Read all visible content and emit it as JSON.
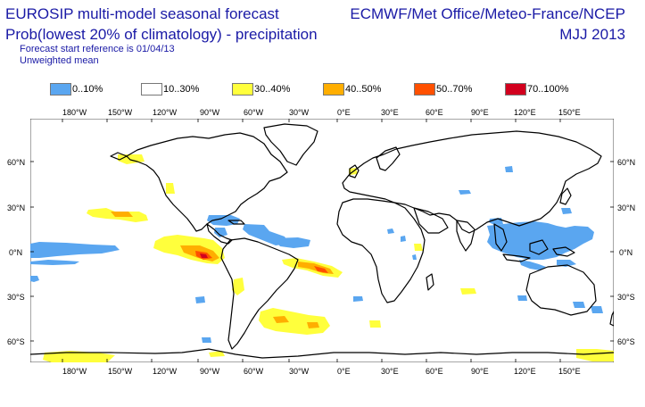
{
  "header": {
    "title": "EUROSIP multi-model seasonal forecast",
    "subtitle": "Prob(lowest 20% of climatology) - precipitation",
    "forecast_start": "Forecast start reference is 01/04/13",
    "mean_type": "Unweighted mean",
    "source": "ECMWF/Met Office/Meteo-France/NCEP",
    "period": "MJJ 2013"
  },
  "legend": [
    {
      "label": "0..10%",
      "color": "#5aa6f0"
    },
    {
      "label": "10..30%",
      "color": "#ffffff"
    },
    {
      "label": "30..40%",
      "color": "#ffff3c"
    },
    {
      "label": "40..50%",
      "color": "#ffae00"
    },
    {
      "label": "50..70%",
      "color": "#ff5000"
    },
    {
      "label": "70..100%",
      "color": "#d2001e"
    }
  ],
  "axes": {
    "lon_ticks": [
      "180°W",
      "150°W",
      "120°W",
      "90°W",
      "60°W",
      "30°W",
      "0°E",
      "30°E",
      "60°E",
      "90°E",
      "120°E",
      "150°E"
    ],
    "lat_ticks": [
      "60°N",
      "30°N",
      "0°N",
      "30°S",
      "60°S"
    ]
  },
  "colors": {
    "text": "#1a1aa6",
    "coast": "#000000"
  }
}
